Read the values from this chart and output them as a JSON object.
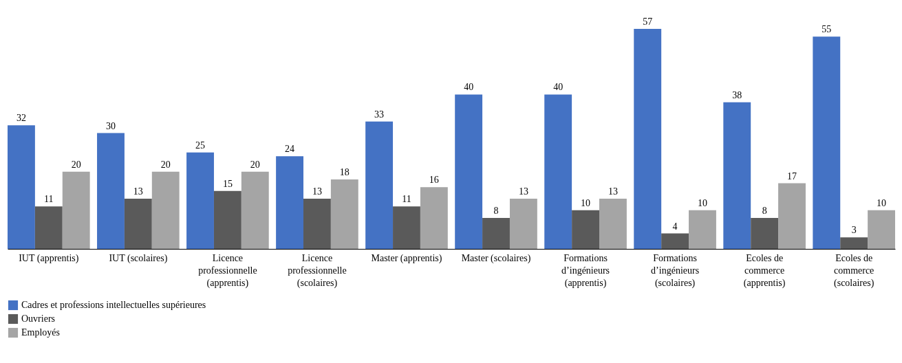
{
  "chart_data": {
    "type": "bar",
    "categories": [
      "IUT (apprentis)",
      "IUT (scolaires)",
      "Licence\nprofessionnelle\n(apprentis)",
      "Licence\nprofessionnelle\n(scolaires)",
      "Master (apprentis)",
      "Master (scolaires)",
      "Formations\nd’ingénieurs\n(apprentis)",
      "Formations\nd’ingénieurs\n(scolaires)",
      "Ecoles de\ncommerce\n(apprentis)",
      "Ecoles de\ncommerce\n(scolaires)"
    ],
    "series": [
      {
        "name": "Cadres et professions intellectuelles supérieures",
        "color": "#4472c4",
        "values": [
          32,
          30,
          25,
          24,
          33,
          40,
          40,
          57,
          38,
          55
        ]
      },
      {
        "name": "Ouvriers",
        "color": "#5a5a5a",
        "values": [
          11,
          13,
          15,
          13,
          11,
          8,
          10,
          4,
          8,
          3
        ]
      },
      {
        "name": "Employés",
        "color": "#a5a5a5",
        "values": [
          20,
          20,
          20,
          18,
          16,
          13,
          13,
          10,
          17,
          10
        ]
      }
    ],
    "data_labels": true,
    "grid": false,
    "legend": "bottom"
  }
}
